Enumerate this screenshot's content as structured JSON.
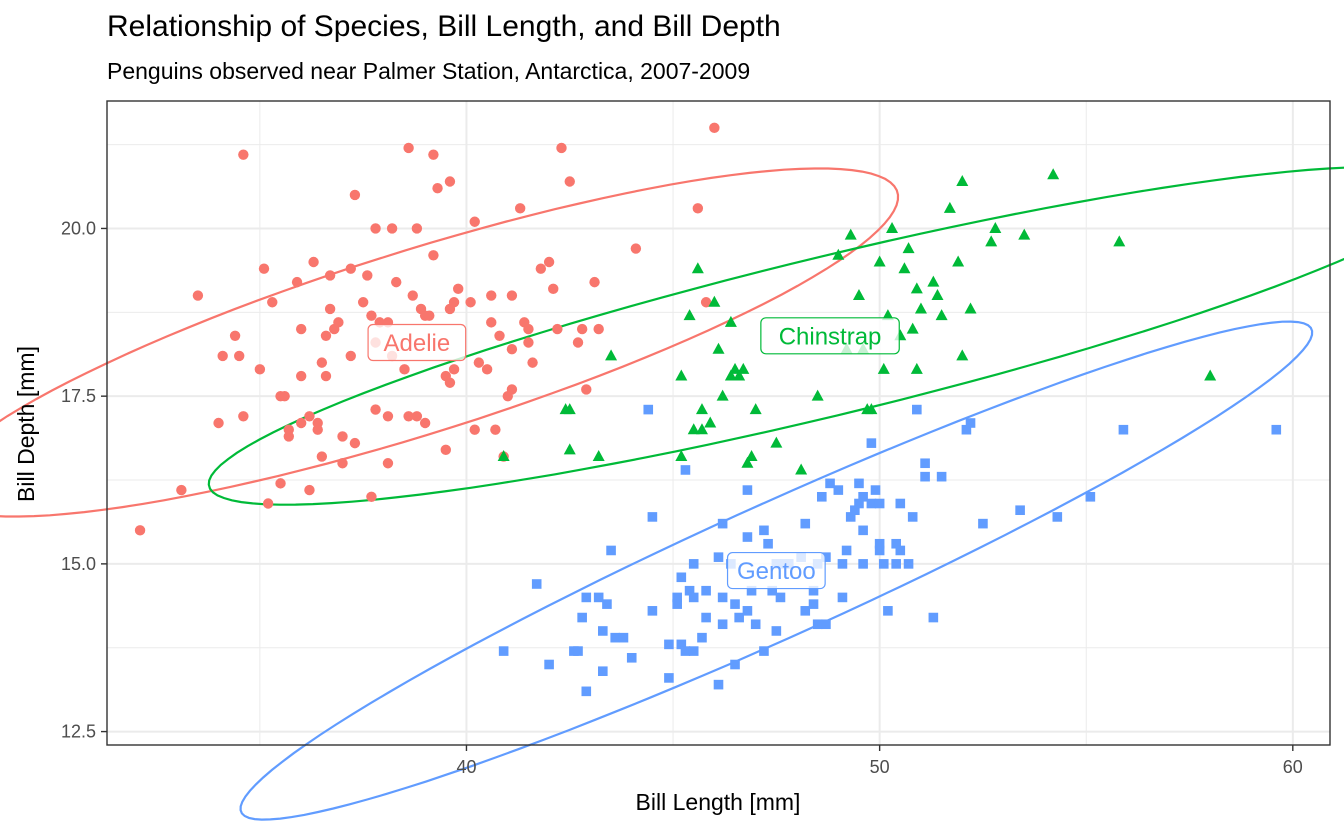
{
  "chart_data": {
    "type": "scatter",
    "title": "Relationship of Species, Bill Length, and Bill Depth",
    "subtitle": "Penguins observed near Palmer Station, Antarctica, 2007-2009",
    "xlabel": "Bill Length [mm]",
    "ylabel": "Bill Depth [mm]",
    "xlim": [
      31.3,
      60.9
    ],
    "ylim": [
      12.3,
      21.9
    ],
    "xticks": [
      40,
      50,
      60
    ],
    "yticks": [
      12.5,
      15.0,
      17.5,
      20.0
    ],
    "xtick_labels": [
      "40",
      "50",
      "60"
    ],
    "ytick_labels": [
      "12.5",
      "15.0",
      "17.5",
      "20.0"
    ],
    "grid": true,
    "legend": "none",
    "series": [
      {
        "name": "Adelie",
        "label": "Adelie",
        "color": "#F8766D",
        "shape": "circle",
        "label_pos": [
          38.8,
          18.3
        ],
        "ellipse": {
          "cx": 38.8,
          "cy": 18.3,
          "rx": 11.85,
          "ry": 1.4,
          "angle_deg": 10.7
        },
        "points": [
          [
            32.1,
            15.5
          ],
          [
            33.1,
            16.1
          ],
          [
            33.5,
            19.0
          ],
          [
            34.0,
            17.1
          ],
          [
            34.1,
            18.1
          ],
          [
            34.4,
            18.4
          ],
          [
            34.5,
            18.1
          ],
          [
            34.6,
            21.1
          ],
          [
            34.6,
            17.2
          ],
          [
            35.0,
            17.9
          ],
          [
            35.1,
            19.4
          ],
          [
            35.2,
            15.9
          ],
          [
            35.3,
            18.9
          ],
          [
            35.5,
            16.2
          ],
          [
            35.5,
            17.5
          ],
          [
            35.6,
            17.5
          ],
          [
            35.7,
            16.9
          ],
          [
            35.7,
            17.0
          ],
          [
            35.9,
            19.2
          ],
          [
            36.0,
            17.1
          ],
          [
            36.0,
            17.8
          ],
          [
            36.0,
            18.5
          ],
          [
            36.2,
            16.1
          ],
          [
            36.2,
            17.2
          ],
          [
            36.3,
            19.5
          ],
          [
            36.4,
            17.0
          ],
          [
            36.4,
            17.1
          ],
          [
            36.5,
            16.6
          ],
          [
            36.5,
            18.0
          ],
          [
            36.6,
            17.8
          ],
          [
            36.6,
            18.4
          ],
          [
            36.7,
            19.3
          ],
          [
            36.7,
            18.8
          ],
          [
            36.8,
            18.5
          ],
          [
            36.9,
            18.6
          ],
          [
            37.0,
            16.9
          ],
          [
            37.0,
            16.5
          ],
          [
            37.2,
            18.1
          ],
          [
            37.2,
            19.4
          ],
          [
            37.3,
            20.5
          ],
          [
            37.3,
            16.8
          ],
          [
            37.5,
            18.9
          ],
          [
            37.6,
            19.3
          ],
          [
            37.7,
            18.7
          ],
          [
            37.7,
            16.0
          ],
          [
            37.8,
            20.0
          ],
          [
            37.8,
            18.3
          ],
          [
            37.8,
            17.3
          ],
          [
            37.9,
            18.6
          ],
          [
            38.1,
            18.6
          ],
          [
            38.1,
            17.2
          ],
          [
            38.1,
            16.5
          ],
          [
            38.2,
            18.1
          ],
          [
            38.2,
            20.0
          ],
          [
            38.3,
            19.2
          ],
          [
            38.5,
            17.9
          ],
          [
            38.6,
            17.2
          ],
          [
            38.6,
            21.2
          ],
          [
            38.7,
            19.0
          ],
          [
            38.8,
            17.2
          ],
          [
            38.8,
            20.0
          ],
          [
            38.9,
            18.8
          ],
          [
            39.0,
            17.1
          ],
          [
            39.0,
            18.7
          ],
          [
            39.1,
            18.7
          ],
          [
            39.2,
            19.6
          ],
          [
            39.2,
            21.1
          ],
          [
            39.3,
            20.6
          ],
          [
            39.5,
            16.7
          ],
          [
            39.5,
            17.8
          ],
          [
            39.6,
            17.7
          ],
          [
            39.6,
            18.8
          ],
          [
            39.7,
            17.9
          ],
          [
            39.7,
            18.9
          ],
          [
            39.8,
            19.1
          ],
          [
            40.1,
            18.9
          ],
          [
            40.2,
            17.0
          ],
          [
            40.2,
            20.1
          ],
          [
            40.3,
            18.0
          ],
          [
            40.5,
            17.9
          ],
          [
            40.6,
            18.6
          ],
          [
            40.6,
            19.0
          ],
          [
            40.7,
            17.0
          ],
          [
            40.8,
            18.4
          ],
          [
            40.9,
            16.6
          ],
          [
            41.0,
            17.5
          ],
          [
            41.1,
            17.6
          ],
          [
            41.1,
            18.2
          ],
          [
            41.1,
            19.0
          ],
          [
            41.3,
            20.3
          ],
          [
            41.4,
            18.6
          ],
          [
            41.5,
            18.3
          ],
          [
            41.6,
            18.0
          ],
          [
            41.8,
            19.4
          ],
          [
            42.0,
            19.5
          ],
          [
            42.1,
            19.1
          ],
          [
            42.2,
            18.5
          ],
          [
            42.3,
            21.2
          ],
          [
            42.5,
            20.7
          ],
          [
            42.7,
            18.3
          ],
          [
            42.8,
            18.5
          ],
          [
            42.9,
            17.6
          ],
          [
            43.1,
            19.2
          ],
          [
            43.2,
            18.5
          ],
          [
            44.1,
            19.7
          ],
          [
            45.8,
            18.9
          ],
          [
            46.0,
            21.5
          ],
          [
            45.6,
            20.3
          ],
          [
            41.5,
            18.5
          ],
          [
            39.6,
            20.7
          ]
        ]
      },
      {
        "name": "Chinstrap",
        "label": "Chinstrap",
        "color": "#00BA38",
        "shape": "triangle",
        "label_pos": [
          48.8,
          18.4
        ],
        "ellipse": {
          "cx": 48.8,
          "cy": 18.4,
          "rx": 15.2,
          "ry": 1.2,
          "angle_deg": 8.4
        },
        "points": [
          [
            40.9,
            16.6
          ],
          [
            42.4,
            17.3
          ],
          [
            42.5,
            16.7
          ],
          [
            42.5,
            17.3
          ],
          [
            43.2,
            16.6
          ],
          [
            43.5,
            18.1
          ],
          [
            45.2,
            16.6
          ],
          [
            45.2,
            17.8
          ],
          [
            45.4,
            18.7
          ],
          [
            45.5,
            17.0
          ],
          [
            45.6,
            19.4
          ],
          [
            45.7,
            17.0
          ],
          [
            45.7,
            17.3
          ],
          [
            45.9,
            17.1
          ],
          [
            46.0,
            18.9
          ],
          [
            46.1,
            18.2
          ],
          [
            46.2,
            17.5
          ],
          [
            46.4,
            18.6
          ],
          [
            46.4,
            17.8
          ],
          [
            46.5,
            17.9
          ],
          [
            46.6,
            17.8
          ],
          [
            46.7,
            17.9
          ],
          [
            46.8,
            16.5
          ],
          [
            46.9,
            16.6
          ],
          [
            47.0,
            17.3
          ],
          [
            47.5,
            16.8
          ],
          [
            48.1,
            16.4
          ],
          [
            48.5,
            17.5
          ],
          [
            49.0,
            19.6
          ],
          [
            49.2,
            18.2
          ],
          [
            49.5,
            19.0
          ],
          [
            49.6,
            18.2
          ],
          [
            49.7,
            17.3
          ],
          [
            50.0,
            19.5
          ],
          [
            50.1,
            17.9
          ],
          [
            50.2,
            18.7
          ],
          [
            50.3,
            20.0
          ],
          [
            50.5,
            18.4
          ],
          [
            50.6,
            19.4
          ],
          [
            50.7,
            19.7
          ],
          [
            50.8,
            18.5
          ],
          [
            50.9,
            17.9
          ],
          [
            51.0,
            18.8
          ],
          [
            51.3,
            19.2
          ],
          [
            51.4,
            19.0
          ],
          [
            51.5,
            18.7
          ],
          [
            51.7,
            20.3
          ],
          [
            51.9,
            19.5
          ],
          [
            52.0,
            18.1
          ],
          [
            52.0,
            20.7
          ],
          [
            52.2,
            18.8
          ],
          [
            52.7,
            19.8
          ],
          [
            52.8,
            20.0
          ],
          [
            53.5,
            19.9
          ],
          [
            54.2,
            20.8
          ],
          [
            55.8,
            19.8
          ],
          [
            58.0,
            17.8
          ],
          [
            49.8,
            17.3
          ],
          [
            49.3,
            19.9
          ],
          [
            50.9,
            19.1
          ]
        ]
      },
      {
        "name": "Gentoo",
        "label": "Gentoo",
        "color": "#619CFF",
        "shape": "square",
        "label_pos": [
          47.5,
          14.9
        ],
        "ellipse": {
          "cx": 47.5,
          "cy": 14.9,
          "rx": 13.45,
          "ry": 1.05,
          "angle_deg": 15.4
        },
        "points": [
          [
            40.9,
            13.7
          ],
          [
            41.7,
            14.7
          ],
          [
            42.0,
            13.5
          ],
          [
            42.6,
            13.7
          ],
          [
            42.7,
            13.7
          ],
          [
            42.8,
            14.2
          ],
          [
            42.9,
            13.1
          ],
          [
            42.9,
            14.5
          ],
          [
            43.2,
            14.5
          ],
          [
            43.3,
            14.0
          ],
          [
            43.3,
            13.4
          ],
          [
            43.4,
            14.4
          ],
          [
            43.5,
            15.2
          ],
          [
            43.6,
            13.9
          ],
          [
            43.8,
            13.9
          ],
          [
            44.0,
            13.6
          ],
          [
            44.4,
            17.3
          ],
          [
            44.5,
            14.3
          ],
          [
            44.5,
            15.7
          ],
          [
            44.9,
            13.3
          ],
          [
            44.9,
            13.8
          ],
          [
            45.1,
            14.5
          ],
          [
            45.1,
            14.4
          ],
          [
            45.2,
            14.8
          ],
          [
            45.2,
            13.8
          ],
          [
            45.3,
            13.7
          ],
          [
            45.4,
            14.6
          ],
          [
            45.5,
            13.7
          ],
          [
            45.5,
            14.5
          ],
          [
            45.5,
            15.0
          ],
          [
            45.7,
            13.9
          ],
          [
            45.8,
            14.2
          ],
          [
            45.8,
            14.6
          ],
          [
            46.1,
            15.1
          ],
          [
            46.2,
            14.5
          ],
          [
            46.2,
            15.6
          ],
          [
            46.2,
            14.1
          ],
          [
            46.4,
            15.0
          ],
          [
            46.5,
            13.5
          ],
          [
            46.5,
            14.4
          ],
          [
            46.6,
            14.2
          ],
          [
            46.8,
            14.3
          ],
          [
            46.8,
            15.4
          ],
          [
            46.8,
            16.1
          ],
          [
            46.9,
            14.6
          ],
          [
            47.2,
            13.7
          ],
          [
            47.2,
            15.5
          ],
          [
            47.3,
            15.3
          ],
          [
            47.4,
            14.6
          ],
          [
            47.5,
            14.0
          ],
          [
            47.5,
            15.0
          ],
          [
            47.6,
            14.5
          ],
          [
            47.7,
            15.0
          ],
          [
            47.8,
            15.0
          ],
          [
            48.1,
            15.1
          ],
          [
            48.2,
            14.3
          ],
          [
            48.2,
            15.6
          ],
          [
            48.4,
            14.4
          ],
          [
            48.4,
            14.6
          ],
          [
            48.5,
            14.1
          ],
          [
            48.5,
            15.0
          ],
          [
            48.6,
            16.0
          ],
          [
            48.7,
            14.1
          ],
          [
            48.7,
            15.1
          ],
          [
            48.8,
            16.2
          ],
          [
            49.0,
            16.1
          ],
          [
            49.1,
            14.5
          ],
          [
            49.1,
            15.0
          ],
          [
            49.2,
            15.2
          ],
          [
            49.3,
            15.7
          ],
          [
            49.4,
            15.8
          ],
          [
            49.5,
            15.9
          ],
          [
            49.5,
            16.2
          ],
          [
            49.6,
            15.0
          ],
          [
            49.6,
            16.0
          ],
          [
            49.8,
            15.9
          ],
          [
            49.8,
            16.8
          ],
          [
            49.9,
            16.1
          ],
          [
            50.0,
            15.2
          ],
          [
            50.0,
            15.3
          ],
          [
            50.0,
            15.9
          ],
          [
            50.1,
            15.0
          ],
          [
            50.2,
            14.3
          ],
          [
            50.4,
            15.0
          ],
          [
            50.4,
            15.3
          ],
          [
            50.5,
            15.2
          ],
          [
            50.5,
            15.9
          ],
          [
            50.7,
            15.0
          ],
          [
            50.8,
            15.7
          ],
          [
            50.9,
            17.3
          ],
          [
            51.1,
            16.3
          ],
          [
            51.1,
            16.5
          ],
          [
            51.3,
            14.2
          ],
          [
            51.5,
            16.3
          ],
          [
            52.1,
            17.0
          ],
          [
            52.2,
            17.1
          ],
          [
            52.5,
            15.6
          ],
          [
            53.4,
            15.8
          ],
          [
            54.3,
            15.7
          ],
          [
            55.1,
            16.0
          ],
          [
            55.9,
            17.0
          ],
          [
            59.6,
            17.0
          ],
          [
            45.3,
            16.4
          ],
          [
            46.1,
            13.2
          ],
          [
            49.6,
            15.5
          ],
          [
            47.0,
            14.1
          ]
        ]
      }
    ]
  }
}
